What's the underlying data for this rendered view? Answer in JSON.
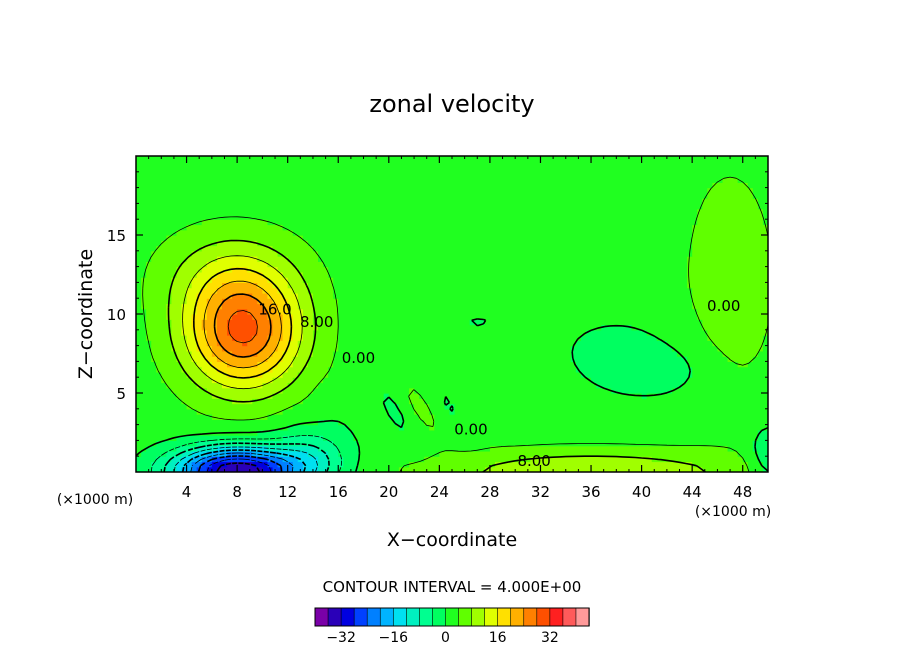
{
  "chart_data": {
    "type": "heatmap",
    "title": "zonal velocity",
    "xlabel": "X−coordinate",
    "ylabel": "Z−coordinate",
    "x_unit_label": "(×1000 m)",
    "x_unit_label_right": "(×1000 m)",
    "xlim": [
      0,
      50
    ],
    "ylim": [
      0,
      20
    ],
    "x_ticks": [
      4,
      8,
      12,
      16,
      20,
      24,
      28,
      32,
      36,
      40,
      44,
      48
    ],
    "y_ticks": [
      5,
      10,
      15
    ],
    "contour_interval_text": "CONTOUR INTERVAL = 4.000E+00",
    "contour_labels": [
      {
        "text": "16.0",
        "x": 11,
        "y": 10.3
      },
      {
        "text": "8.00",
        "x": 14.3,
        "y": 9.5
      },
      {
        "text": "0.00",
        "x": 17.6,
        "y": 7.2
      },
      {
        "text": "0.00",
        "x": 26.5,
        "y": 2.7
      },
      {
        "text": "8.00",
        "x": 31.5,
        "y": 0.7
      },
      {
        "text": "0.00",
        "x": 46.5,
        "y": 10.5
      }
    ],
    "colorbar": {
      "levels": [
        -36,
        -32,
        -28,
        -24,
        -20,
        -16,
        -12,
        -8,
        -4,
        0,
        4,
        8,
        12,
        16,
        20,
        24,
        28,
        32,
        36
      ],
      "tick_labels": [
        "−32",
        "−16",
        "0",
        "16",
        "32"
      ],
      "tick_values": [
        -32,
        -16,
        0,
        16,
        32
      ],
      "colors": [
        "#7a00a8",
        "#2a00b8",
        "#0000e0",
        "#0040ff",
        "#0080ff",
        "#00b4ff",
        "#00e0f0",
        "#00f0c0",
        "#00ff90",
        "#00ff60",
        "#20ff20",
        "#60ff00",
        "#a0ff00",
        "#e0ff00",
        "#ffe000",
        "#ffb000",
        "#ff8000",
        "#ff5000",
        "#ff2020",
        "#ff5a5a",
        "#ff9a9a"
      ]
    },
    "features": [
      {
        "name": "upper-left positive jet",
        "x_range": [
          2,
          15
        ],
        "z_range": [
          3,
          16
        ],
        "max_value": 28
      },
      {
        "name": "near-surface negative core",
        "x_range": [
          0,
          16
        ],
        "z_range": [
          0,
          3
        ],
        "min_value": -36
      },
      {
        "name": "weak negative region",
        "x_range": [
          37,
          47
        ],
        "z_range": [
          4,
          8
        ],
        "min_value": -4
      },
      {
        "name": "near-surface positive band",
        "x_range": [
          20,
          50
        ],
        "z_range": [
          0,
          3
        ],
        "max_value": 12
      }
    ]
  }
}
